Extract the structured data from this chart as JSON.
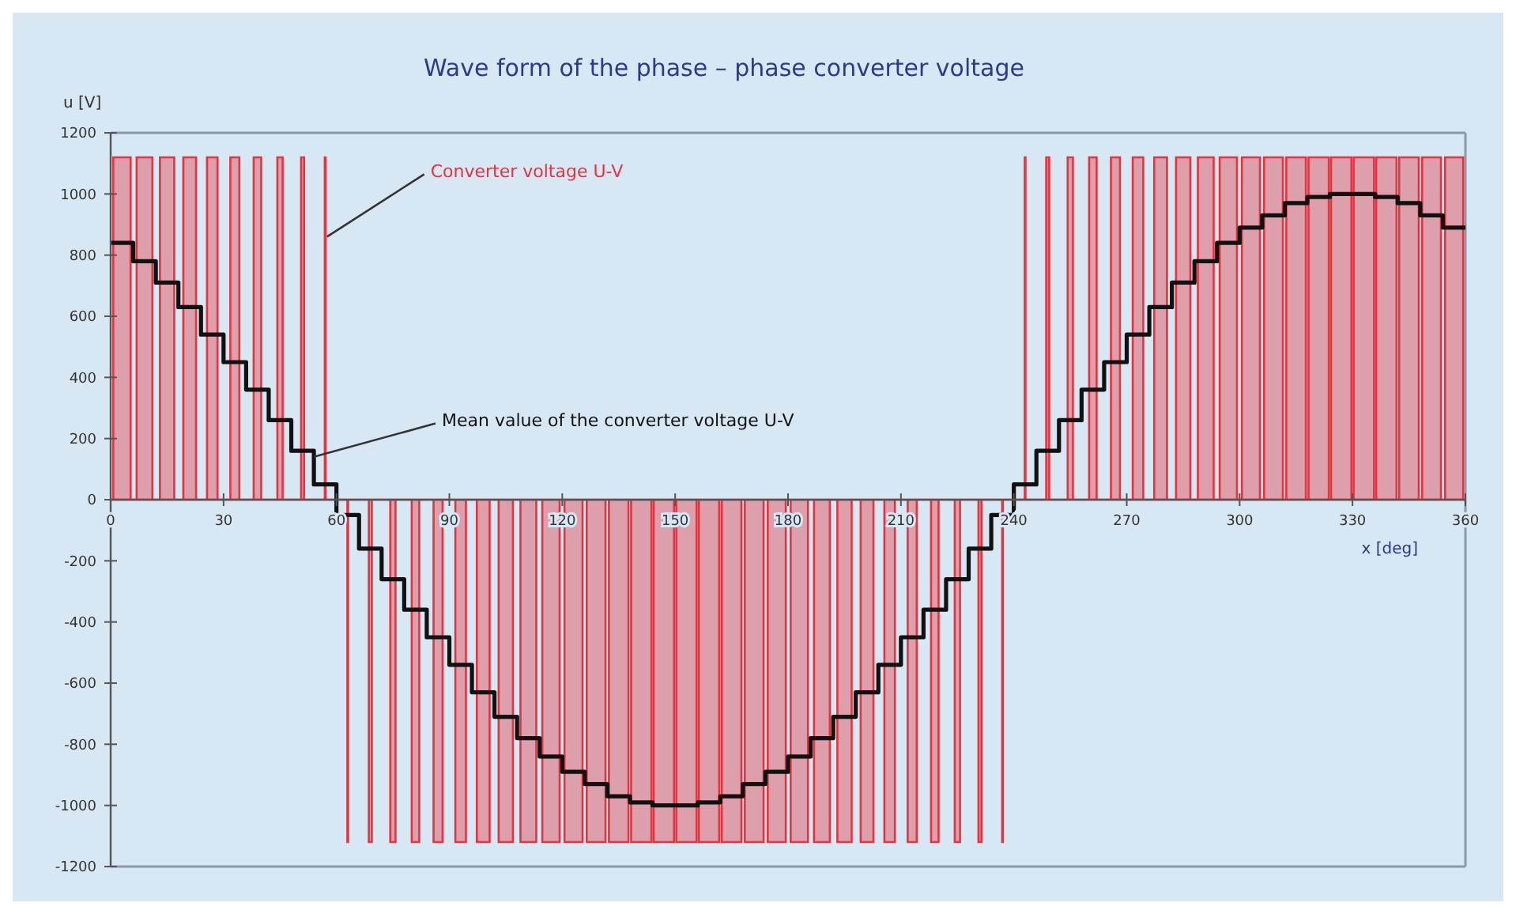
{
  "chart_data": {
    "type": "step",
    "title": "Wave form of the phase – phase converter voltage",
    "xlabel": "x [deg]",
    "ylabel": "u [V]",
    "xlim": [
      0,
      360
    ],
    "xticks": [
      0,
      30,
      60,
      90,
      120,
      150,
      180,
      210,
      240,
      270,
      300,
      330,
      360
    ],
    "ylim": [
      -1200,
      1200
    ],
    "yticks": [
      -1200,
      -1000,
      -800,
      -600,
      -400,
      -200,
      0,
      200,
      400,
      600,
      800,
      1000,
      1200
    ],
    "grid": false,
    "series": [
      {
        "name": "Converter voltage U-V",
        "type": "area",
        "color": "#e3343f",
        "x": [
          0,
          0.7,
          5.3,
          6.9,
          11.1,
          13.1,
          16.9,
          19.3,
          22.7,
          25.6,
          28.4,
          31.8,
          34.2,
          38.0,
          40.0,
          44.3,
          45.7,
          50.6,
          51.4,
          56.9,
          57.1,
          62.9,
          63.1,
          68.6,
          69.4,
          74.3,
          75.7,
          80.0,
          82.0,
          85.8,
          88.2,
          91.6,
          94.4,
          97.3,
          100.7,
          103.1,
          106.9,
          108.9,
          113.1,
          114.7,
          119.3,
          120.6,
          125.4,
          126.5,
          131.5,
          132.4,
          137.6,
          138.3,
          143.7,
          144.3,
          149.7,
          150.3,
          155.7,
          156.3,
          161.7,
          162.4,
          167.6,
          168.5,
          173.5,
          174.6,
          179.4,
          180.7,
          185.3,
          186.9,
          191.1,
          193.1,
          196.9,
          199.3,
          202.7,
          205.6,
          208.4,
          211.8,
          214.2,
          218.0,
          220.0,
          224.3,
          225.7,
          230.6,
          231.4,
          236.9,
          237.1,
          242.9,
          243.1,
          248.6,
          249.4,
          254.3,
          255.7,
          260.0,
          262.0,
          265.8,
          268.2,
          271.6,
          274.4,
          277.3,
          280.7,
          283.1,
          286.9,
          288.9,
          293.1,
          294.7,
          299.3,
          300.6,
          305.4,
          306.5,
          311.5,
          312.4,
          317.6,
          318.3,
          323.7,
          324.3,
          329.7,
          330.3,
          335.7,
          336.3,
          341.7,
          342.4,
          347.6,
          348.5,
          353.5,
          354.6,
          359.4,
          360
        ],
        "values": [
          0,
          1120,
          0,
          1120,
          0,
          1120,
          0,
          1120,
          0,
          1120,
          0,
          1120,
          0,
          1120,
          0,
          1120,
          0,
          1120,
          0,
          1120,
          0,
          -1120,
          0,
          -1120,
          0,
          -1120,
          0,
          -1120,
          0,
          -1120,
          0,
          -1120,
          0,
          -1120,
          0,
          -1120,
          0,
          -1120,
          0,
          -1120,
          0,
          -1120,
          0,
          -1120,
          0,
          -1120,
          0,
          -1120,
          0,
          -1120,
          0,
          -1120,
          0,
          -1120,
          0,
          -1120,
          0,
          -1120,
          0,
          -1120,
          0,
          -1120,
          0,
          -1120,
          0,
          -1120,
          0,
          -1120,
          0,
          -1120,
          0,
          -1120,
          0,
          -1120,
          0,
          -1120,
          0,
          -1120,
          0,
          -1120,
          0,
          1120,
          0,
          1120,
          0,
          1120,
          0,
          1120,
          0,
          1120,
          0,
          1120,
          0,
          1120,
          0,
          1120,
          0,
          1120,
          0,
          1120,
          0,
          1120,
          0,
          1120,
          0,
          1120,
          0,
          1120,
          0,
          1120,
          0,
          1120,
          0,
          1120,
          0,
          1120,
          0,
          1120,
          0,
          1120,
          0,
          0
        ]
      },
      {
        "name": "Mean value of the converter voltage U-V",
        "type": "step",
        "color": "#111111",
        "x": [
          0,
          6,
          12,
          18,
          24,
          30,
          36,
          42,
          48,
          54,
          60,
          66,
          72,
          78,
          84,
          90,
          96,
          102,
          108,
          114,
          120,
          126,
          132,
          138,
          144,
          150,
          156,
          162,
          168,
          174,
          180,
          186,
          192,
          198,
          204,
          210,
          216,
          222,
          228,
          234,
          240,
          246,
          252,
          258,
          264,
          270,
          276,
          282,
          288,
          294,
          300,
          306,
          312,
          318,
          324,
          330,
          336,
          342,
          348,
          354,
          360
        ],
        "values": [
          840,
          780,
          710,
          630,
          540,
          450,
          360,
          260,
          160,
          50,
          -50,
          -160,
          -260,
          -360,
          -450,
          -540,
          -630,
          -710,
          -780,
          -840,
          -890,
          -930,
          -970,
          -990,
          -1000,
          -1000,
          -990,
          -970,
          -930,
          -890,
          -840,
          -780,
          -710,
          -630,
          -540,
          -450,
          -360,
          -260,
          -160,
          -50,
          50,
          160,
          260,
          360,
          450,
          540,
          630,
          710,
          780,
          840,
          890,
          930,
          970,
          990,
          1000,
          1000,
          990,
          970,
          930,
          890,
          890
        ]
      }
    ]
  }
}
